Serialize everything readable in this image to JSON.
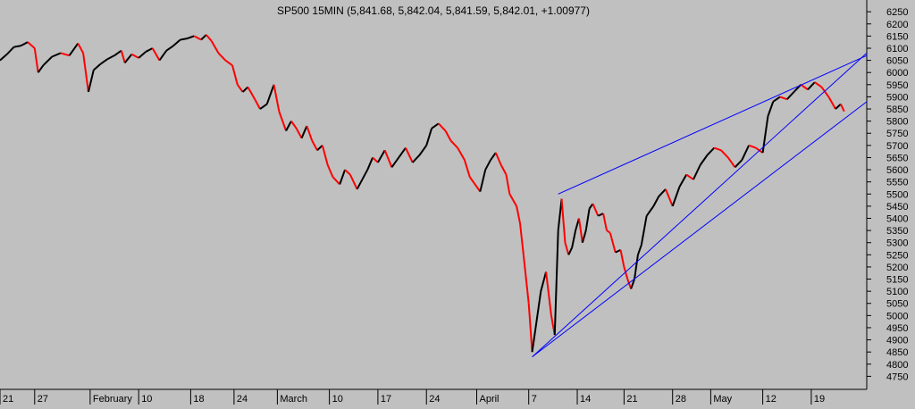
{
  "title": "SP500 15MIN (5,841.68, 5,842.04, 5,841.59, 5,842.01, +1.00977)",
  "colors": {
    "background": "#c0c0c0",
    "up": "#000000",
    "down": "#ff0000",
    "trendline": "#0000ff",
    "axis": "#000000"
  },
  "chart_data": {
    "type": "line",
    "title": "SP500 15MIN (5,841.68, 5,842.04, 5,841.59, 5,842.01, +1.00977)",
    "ylim": [
      4700,
      6280
    ],
    "y_ticks": [
      4750,
      4800,
      4850,
      4900,
      4950,
      5000,
      5050,
      5100,
      5150,
      5200,
      5250,
      5300,
      5350,
      5400,
      5450,
      5500,
      5550,
      5600,
      5650,
      5700,
      5750,
      5800,
      5850,
      5900,
      5950,
      6000,
      6050,
      6100,
      6150,
      6200,
      6250
    ],
    "x_ticks": [
      "21",
      "27",
      "February",
      "10",
      "18",
      "24",
      "March",
      "10",
      "17",
      "24",
      "April",
      "7",
      "14",
      "21",
      "28",
      "May",
      "12",
      "19"
    ],
    "x_tick_index": [
      0,
      20,
      52,
      80,
      110,
      135,
      160,
      190,
      218,
      246,
      275,
      305,
      333,
      360,
      388,
      410,
      440,
      468
    ],
    "x_range": [
      0,
      500
    ],
    "grid": false,
    "series": [
      {
        "color": "#000000",
        "points": [
          [
            0,
            6050
          ],
          [
            4,
            6075
          ],
          [
            8,
            6105
          ],
          [
            12,
            6110
          ],
          [
            16,
            6125
          ],
          [
            20,
            6100
          ],
          [
            22,
            6000
          ],
          [
            25,
            6030
          ],
          [
            30,
            6065
          ],
          [
            35,
            6080
          ],
          [
            40,
            6070
          ],
          [
            45,
            6120
          ],
          [
            48,
            6080
          ],
          [
            51,
            5920
          ],
          [
            54,
            6010
          ],
          [
            58,
            6035
          ],
          [
            62,
            6055
          ],
          [
            66,
            6070
          ],
          [
            70,
            6090
          ],
          [
            72,
            6040
          ],
          [
            76,
            6075
          ],
          [
            80,
            6060
          ],
          [
            84,
            6085
          ],
          [
            88,
            6100
          ],
          [
            92,
            6050
          ],
          [
            96,
            6090
          ],
          [
            100,
            6110
          ],
          [
            104,
            6135
          ],
          [
            108,
            6140
          ],
          [
            112,
            6150
          ],
          [
            116,
            6135
          ],
          [
            119,
            6155
          ],
          [
            122,
            6130
          ],
          [
            126,
            6080
          ],
          [
            130,
            6050
          ],
          [
            134,
            6030
          ],
          [
            137,
            5950
          ],
          [
            140,
            5920
          ],
          [
            143,
            5940
          ],
          [
            147,
            5890
          ],
          [
            150,
            5850
          ],
          [
            154,
            5870
          ],
          [
            158,
            5950
          ],
          [
            161,
            5840
          ],
          [
            165,
            5760
          ],
          [
            168,
            5800
          ],
          [
            171,
            5770
          ],
          [
            174,
            5730
          ],
          [
            177,
            5780
          ],
          [
            180,
            5720
          ],
          [
            183,
            5680
          ],
          [
            186,
            5700
          ],
          [
            189,
            5620
          ],
          [
            192,
            5570
          ],
          [
            196,
            5540
          ],
          [
            199,
            5600
          ],
          [
            202,
            5580
          ],
          [
            206,
            5520
          ],
          [
            209,
            5560
          ],
          [
            212,
            5600
          ],
          [
            215,
            5650
          ],
          [
            218,
            5630
          ],
          [
            222,
            5680
          ],
          [
            226,
            5610
          ],
          [
            230,
            5650
          ],
          [
            234,
            5690
          ],
          [
            238,
            5630
          ],
          [
            242,
            5660
          ],
          [
            246,
            5700
          ],
          [
            249,
            5770
          ],
          [
            253,
            5790
          ],
          [
            257,
            5760
          ],
          [
            260,
            5720
          ],
          [
            264,
            5690
          ],
          [
            268,
            5640
          ],
          [
            271,
            5570
          ],
          [
            274,
            5540
          ],
          [
            277,
            5510
          ],
          [
            280,
            5600
          ],
          [
            283,
            5640
          ],
          [
            286,
            5670
          ],
          [
            289,
            5620
          ],
          [
            292,
            5580
          ],
          [
            294,
            5500
          ],
          [
            298,
            5450
          ],
          [
            300,
            5380
          ],
          [
            302,
            5250
          ],
          [
            305,
            5050
          ],
          [
            307,
            4850
          ],
          [
            309,
            4950
          ],
          [
            312,
            5100
          ],
          [
            315,
            5180
          ],
          [
            318,
            5000
          ],
          [
            320,
            4920
          ],
          [
            322,
            5350
          ],
          [
            324,
            5480
          ],
          [
            326,
            5300
          ],
          [
            328,
            5250
          ],
          [
            330,
            5280
          ],
          [
            332,
            5350
          ],
          [
            334,
            5400
          ],
          [
            336,
            5300
          ],
          [
            338,
            5350
          ],
          [
            340,
            5440
          ],
          [
            342,
            5460
          ],
          [
            345,
            5410
          ],
          [
            348,
            5420
          ],
          [
            350,
            5350
          ],
          [
            352,
            5340
          ],
          [
            355,
            5260
          ],
          [
            358,
            5270
          ],
          [
            360,
            5200
          ],
          [
            362,
            5150
          ],
          [
            364,
            5110
          ],
          [
            366,
            5150
          ],
          [
            368,
            5250
          ],
          [
            370,
            5290
          ],
          [
            373,
            5410
          ],
          [
            377,
            5450
          ],
          [
            380,
            5490
          ],
          [
            384,
            5520
          ],
          [
            388,
            5450
          ],
          [
            392,
            5530
          ],
          [
            396,
            5580
          ],
          [
            400,
            5560
          ],
          [
            404,
            5620
          ],
          [
            408,
            5660
          ],
          [
            412,
            5690
          ],
          [
            416,
            5680
          ],
          [
            420,
            5650
          ],
          [
            424,
            5610
          ],
          [
            428,
            5640
          ],
          [
            432,
            5700
          ],
          [
            436,
            5690
          ],
          [
            440,
            5670
          ],
          [
            443,
            5820
          ],
          [
            446,
            5880
          ],
          [
            450,
            5900
          ],
          [
            454,
            5890
          ],
          [
            458,
            5920
          ],
          [
            462,
            5950
          ],
          [
            466,
            5930
          ],
          [
            470,
            5960
          ],
          [
            474,
            5940
          ],
          [
            478,
            5900
          ],
          [
            482,
            5850
          ],
          [
            485,
            5870
          ],
          [
            487,
            5840
          ]
        ]
      }
    ],
    "trendlines": [
      {
        "from": [
          307,
          4830
        ],
        "to": [
          500,
          6080
        ],
        "color": "#0000ff"
      },
      {
        "from": [
          322,
          5500
        ],
        "to": [
          500,
          6070
        ],
        "color": "#0000ff"
      },
      {
        "from": [
          307,
          4830
        ],
        "to": [
          500,
          5880
        ],
        "color": "#0000ff"
      }
    ]
  }
}
